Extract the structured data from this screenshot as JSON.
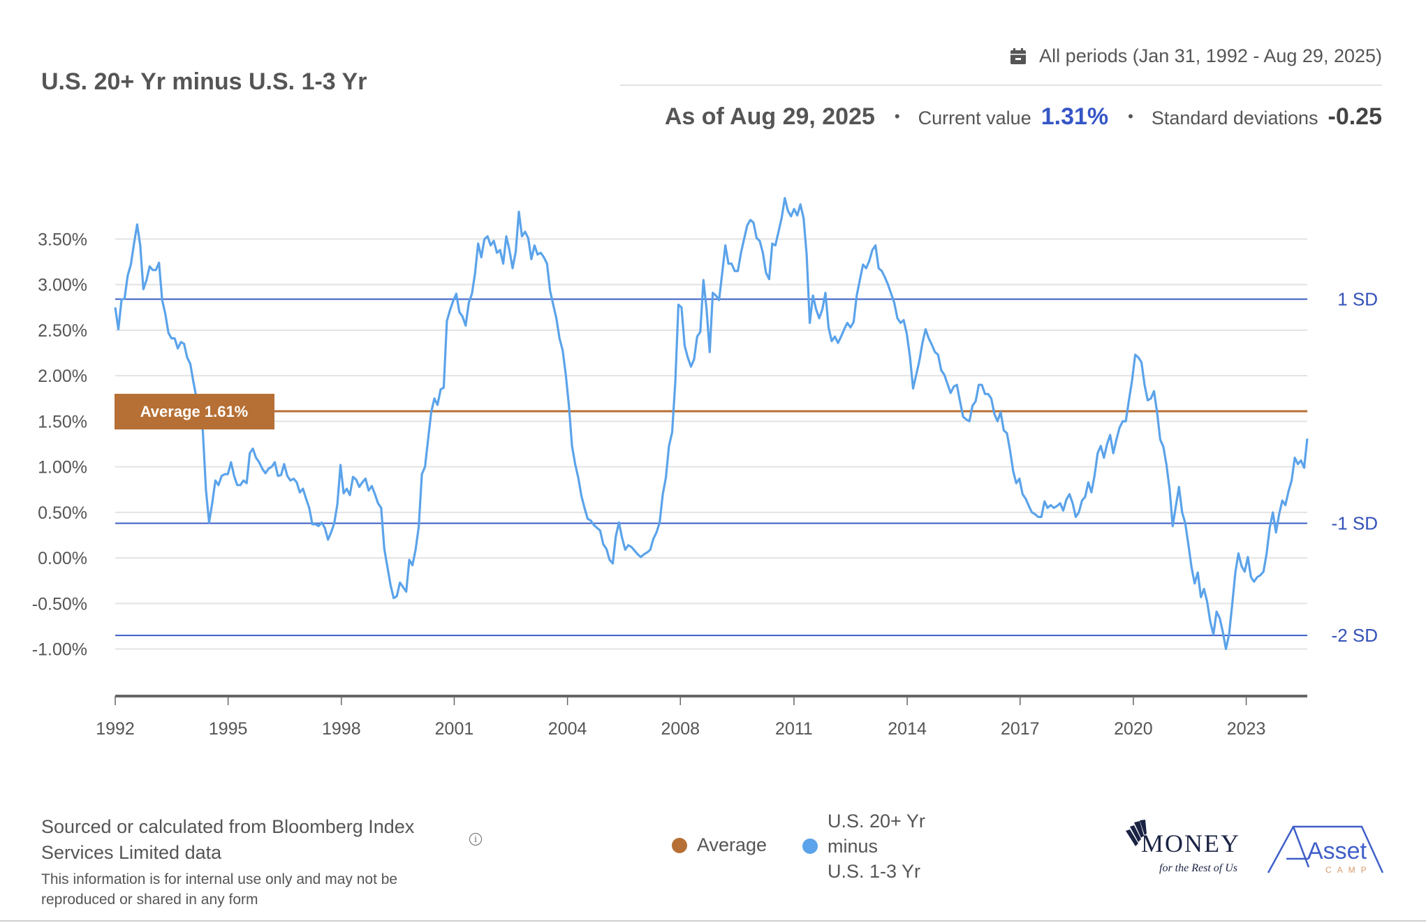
{
  "header": {
    "title": "U.S. 20+ Yr minus U.S. 1-3 Yr",
    "period_icon": "calendar-icon",
    "period_label": "All periods (Jan 31, 1992 - Aug 29, 2025)",
    "as_of": "As of Aug 29, 2025",
    "separator": "•",
    "current_value_label": "Current value",
    "current_value": "1.31%",
    "std_dev_label": "Standard deviations",
    "std_dev_value": "-0.25"
  },
  "colors": {
    "series": "#5ba3ea",
    "average": "#b66f34",
    "sd_line": "#3a5cc5",
    "current_value": "#3556c6",
    "grid": "#e3e3e3",
    "axis": "#666666"
  },
  "chart_data": {
    "type": "line",
    "title": "U.S. 20+ Yr minus U.S. 1-3 Yr",
    "xlabel": "",
    "ylabel": "",
    "x_start": 1992.08,
    "x_end": 2025.66,
    "xlim": [
      1992.08,
      2025.66
    ],
    "ylim": [
      -1.5,
      4.2
    ],
    "grid": true,
    "yticks": [
      3.5,
      3.0,
      2.5,
      2.0,
      1.5,
      1.0,
      0.5,
      0.0,
      -0.5,
      -1.0
    ],
    "ytick_labels": [
      "3.50%",
      "3.00%",
      "2.50%",
      "2.00%",
      "1.50%",
      "1.00%",
      "0.50%",
      "0.00%",
      "-0.50%",
      "-1.00%"
    ],
    "xticks": [
      1992.08,
      1995.26,
      1998.45,
      2001.63,
      2004.82,
      2008.0,
      2011.2,
      2014.39,
      2017.57,
      2020.76,
      2023.94
    ],
    "xtick_labels": [
      "1992",
      "1995",
      "1998",
      "2001",
      "2004",
      "2008",
      "2011",
      "2014",
      "2017",
      "2020",
      "2023"
    ],
    "average": {
      "value": 1.61,
      "label": "Average 1.61%"
    },
    "sd_lines": [
      {
        "label": "1 SD",
        "value": 2.84
      },
      {
        "label": "-1 SD",
        "value": 0.38
      },
      {
        "label": "-2 SD",
        "value": -0.85
      }
    ],
    "legend_position": "bottom-center",
    "legend": [
      {
        "name": "Average",
        "color": "#b66f34"
      },
      {
        "name_lines": [
          "U.S. 20+ Yr",
          "minus",
          "U.S. 1-3 Yr"
        ],
        "color": "#5ba3ea"
      }
    ],
    "series": [
      {
        "name": "U.S. 20+ Yr minus U.S. 1-3 Yr",
        "unit": "%",
        "values": [
          2.75,
          2.51,
          2.83,
          2.85,
          3.1,
          3.22,
          3.45,
          3.66,
          3.43,
          2.95,
          3.05,
          3.2,
          3.16,
          3.16,
          3.24,
          2.83,
          2.68,
          2.47,
          2.41,
          2.41,
          2.3,
          2.37,
          2.35,
          2.2,
          2.13,
          1.93,
          1.75,
          1.55,
          1.4,
          0.75,
          0.39,
          0.6,
          0.85,
          0.8,
          0.9,
          0.92,
          0.92,
          1.05,
          0.9,
          0.8,
          0.8,
          0.85,
          0.82,
          1.15,
          1.2,
          1.1,
          1.05,
          0.98,
          0.93,
          0.98,
          1.0,
          1.05,
          0.9,
          0.91,
          1.03,
          0.9,
          0.85,
          0.87,
          0.83,
          0.72,
          0.76,
          0.65,
          0.55,
          0.37,
          0.37,
          0.35,
          0.39,
          0.33,
          0.2,
          0.28,
          0.38,
          0.59,
          1.02,
          0.71,
          0.76,
          0.69,
          0.89,
          0.86,
          0.78,
          0.83,
          0.87,
          0.74,
          0.79,
          0.7,
          0.6,
          0.55,
          0.1,
          -0.1,
          -0.3,
          -0.44,
          -0.42,
          -0.27,
          -0.32,
          -0.37,
          -0.02,
          -0.08,
          0.09,
          0.34,
          0.92,
          1.0,
          1.3,
          1.6,
          1.75,
          1.68,
          1.85,
          1.87,
          2.6,
          2.72,
          2.82,
          2.9,
          2.7,
          2.65,
          2.55,
          2.8,
          2.9,
          3.12,
          3.45,
          3.3,
          3.5,
          3.53,
          3.43,
          3.48,
          3.35,
          3.38,
          3.23,
          3.53,
          3.38,
          3.18,
          3.36,
          3.8,
          3.53,
          3.58,
          3.51,
          3.28,
          3.43,
          3.33,
          3.35,
          3.3,
          3.23,
          2.93,
          2.78,
          2.63,
          2.41,
          2.28,
          2.01,
          1.68,
          1.23,
          1.03,
          0.88,
          0.68,
          0.55,
          0.43,
          0.41,
          0.36,
          0.33,
          0.3,
          0.15,
          0.1,
          -0.02,
          -0.06,
          0.24,
          0.39,
          0.22,
          0.09,
          0.14,
          0.12,
          0.08,
          0.04,
          0.01,
          0.04,
          0.06,
          0.09,
          0.21,
          0.28,
          0.39,
          0.7,
          0.88,
          1.23,
          1.38,
          1.93,
          2.78,
          2.75,
          2.33,
          2.2,
          2.1,
          2.18,
          2.43,
          2.48,
          3.05,
          2.73,
          2.26,
          2.91,
          2.88,
          2.83,
          3.13,
          3.43,
          3.23,
          3.23,
          3.15,
          3.15,
          3.35,
          3.5,
          3.65,
          3.71,
          3.68,
          3.51,
          3.48,
          3.35,
          3.13,
          3.06,
          3.45,
          3.43,
          3.58,
          3.73,
          3.95,
          3.81,
          3.75,
          3.83,
          3.76,
          3.88,
          3.73,
          3.33,
          2.58,
          2.88,
          2.73,
          2.63,
          2.73,
          2.91,
          2.53,
          2.38,
          2.43,
          2.36,
          2.43,
          2.51,
          2.58,
          2.53,
          2.59,
          2.88,
          3.05,
          3.22,
          3.18,
          3.26,
          3.38,
          3.43,
          3.18,
          3.15,
          3.08,
          3.0,
          2.9,
          2.8,
          2.63,
          2.58,
          2.61,
          2.46,
          2.21,
          1.86,
          2.01,
          2.16,
          2.36,
          2.51,
          2.41,
          2.34,
          2.26,
          2.23,
          2.06,
          2.01,
          1.91,
          1.81,
          1.88,
          1.9,
          1.72,
          1.55,
          1.52,
          1.5,
          1.67,
          1.72,
          1.9,
          1.9,
          1.8,
          1.8,
          1.75,
          1.58,
          1.5,
          1.6,
          1.4,
          1.37,
          1.18,
          0.95,
          0.82,
          0.87,
          0.7,
          0.65,
          0.57,
          0.5,
          0.48,
          0.45,
          0.45,
          0.62,
          0.55,
          0.58,
          0.55,
          0.57,
          0.6,
          0.52,
          0.64,
          0.7,
          0.6,
          0.45,
          0.5,
          0.63,
          0.67,
          0.83,
          0.72,
          0.9,
          1.15,
          1.23,
          1.1,
          1.25,
          1.35,
          1.15,
          1.3,
          1.43,
          1.5,
          1.5,
          1.73,
          1.95,
          2.23,
          2.2,
          2.15,
          1.9,
          1.73,
          1.75,
          1.83,
          1.6,
          1.3,
          1.22,
          1.02,
          0.75,
          0.35,
          0.57,
          0.78,
          0.5,
          0.38,
          0.15,
          -0.1,
          -0.28,
          -0.16,
          -0.43,
          -0.34,
          -0.48,
          -0.7,
          -0.84,
          -0.59,
          -0.66,
          -0.81,
          -1.0,
          -0.84,
          -0.51,
          -0.16,
          0.05,
          -0.09,
          -0.15,
          0.01,
          -0.21,
          -0.26,
          -0.21,
          -0.19,
          -0.15,
          0.05,
          0.33,
          0.5,
          0.28,
          0.48,
          0.63,
          0.58,
          0.73,
          0.85,
          1.1,
          1.03,
          1.07,
          0.99,
          1.31
        ]
      }
    ]
  },
  "footer": {
    "source_line1": "Sourced or calculated from Bloomberg Index",
    "source_line2": "Services Limited data",
    "info_icon": "info-icon",
    "info_glyph": "i",
    "note_line1": "This information is for internal use only and may not be",
    "note_line2": "reproduced or shared in any form"
  },
  "logos": {
    "money_main": "MONEY",
    "money_sub": "for the Rest of Us",
    "asset_main": "Asset",
    "asset_sub": "CAMP"
  }
}
